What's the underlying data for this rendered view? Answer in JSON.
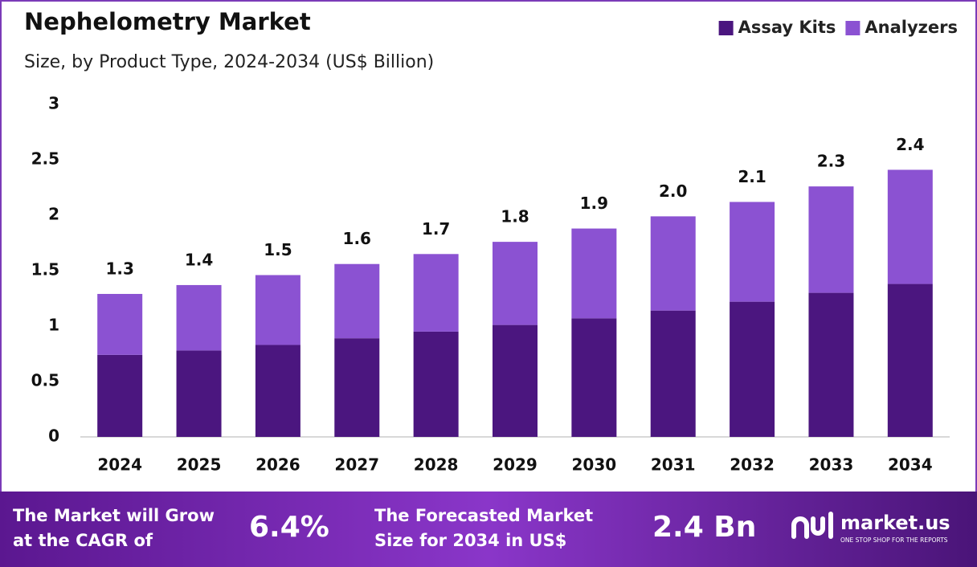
{
  "chart_data": {
    "type": "stacked-bar",
    "title": "Nephelometry Market",
    "subtitle": "Size, by Product Type, 2024-2034 (US$ Billion)",
    "categories": [
      "2024",
      "2025",
      "2026",
      "2027",
      "2028",
      "2029",
      "2030",
      "2031",
      "2032",
      "2033",
      "2034"
    ],
    "series": [
      {
        "name": "Assay Kits",
        "color": "#4b167f",
        "values": [
          0.74,
          0.78,
          0.83,
          0.89,
          0.95,
          1.01,
          1.07,
          1.14,
          1.22,
          1.3,
          1.38
        ]
      },
      {
        "name": "Analyzers",
        "color": "#8b52d2",
        "values": [
          0.55,
          0.59,
          0.63,
          0.67,
          0.7,
          0.75,
          0.81,
          0.85,
          0.9,
          0.96,
          1.03
        ]
      }
    ],
    "total_labels": [
      "1.3",
      "1.4",
      "1.5",
      "1.6",
      "1.7",
      "1.8",
      "1.9",
      "2.0",
      "2.1",
      "2.3",
      "2.4"
    ],
    "ylim": [
      0,
      3
    ],
    "yticks": [
      0,
      0.5,
      1,
      1.5,
      2,
      2.5,
      3
    ],
    "grid": false,
    "legend": "top-right"
  },
  "footer": {
    "cagr_text": [
      "The Market will Grow",
      "at the CAGR of"
    ],
    "cagr_value": "6.4%",
    "forecast_text": [
      "The Forecasted Market",
      "Size for 2034 in US$"
    ],
    "forecast_value": "2.4 Bn",
    "brand": "market.us",
    "tagline": "ONE STOP SHOP FOR THE REPORTS"
  }
}
